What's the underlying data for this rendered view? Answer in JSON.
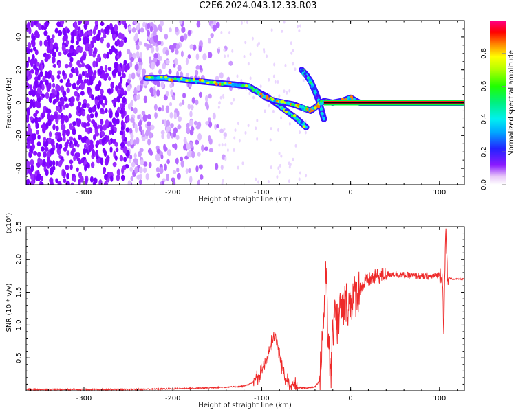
{
  "page": {
    "title": "C2E6.2024.043.12.33.R03"
  },
  "chart_data": [
    {
      "type": "heatmap",
      "title": "C2E6.2024.043.12.33.R03",
      "xlabel": "Height of straight line (km)",
      "ylabel": "Frequency (Hz)",
      "xlim": [
        -365,
        128
      ],
      "ylim": [
        -50,
        50
      ],
      "xticks": [
        -300,
        -200,
        -100,
        0,
        100
      ],
      "yticks": [
        -40,
        -20,
        0,
        20,
        40
      ],
      "xtick_labels": [
        "-300",
        "-200",
        "-100",
        "0",
        "100"
      ],
      "ytick_labels": [
        "-40",
        "-20",
        "0",
        "20",
        "40"
      ],
      "colorbar": {
        "label": "Normalized spectral amplitude",
        "range": [
          0,
          1
        ],
        "ticks": [
          0.0,
          0.2,
          0.4,
          0.6,
          0.8
        ],
        "tick_labels": [
          "0.0",
          "0.2",
          "0.4",
          "0.6",
          "0.8"
        ],
        "colormap": "rainbow (white-violet-blue-cyan-green-yellow-red-magenta)"
      },
      "ridge": {
        "x": [
          -230,
          -210,
          -190,
          -170,
          -150,
          -130,
          -115,
          -105,
          -95,
          -85,
          -75,
          -65,
          -55,
          -50,
          -45,
          -40,
          -35,
          -30,
          -20,
          -10,
          0,
          10,
          50,
          100,
          128
        ],
        "y": [
          15,
          15,
          14,
          13,
          12,
          11,
          10,
          7,
          3,
          1,
          0,
          -1,
          -3,
          -4,
          -5,
          -3,
          -1,
          1,
          0,
          1,
          3,
          0,
          0,
          0,
          0
        ]
      },
      "branch": {
        "x": [
          -110,
          -95,
          -80,
          -70,
          -60,
          -50
        ],
        "y": [
          8,
          4,
          -2,
          -6,
          -10,
          -15
        ]
      },
      "upper_branch": {
        "x": [
          -55,
          -50,
          -45,
          -40,
          -35,
          -30
        ],
        "y": [
          20,
          17,
          13,
          7,
          0,
          -10
        ]
      }
    },
    {
      "type": "line",
      "xlabel": "Height of straight line (km)",
      "ylabel": "SNR (10 * v/v)",
      "y_multiplier_label": "(x10⁴)",
      "xlim": [
        -365,
        128
      ],
      "ylim": [
        0,
        2.5
      ],
      "xticks": [
        -300,
        -200,
        -100,
        0,
        100
      ],
      "yticks": [
        0.5,
        1.0,
        1.5,
        2.0,
        2.5
      ],
      "xtick_labels": [
        "-300",
        "-200",
        "-100",
        "0",
        "100"
      ],
      "ytick_labels": [
        "0.5",
        "1.0",
        "1.5",
        "2.0",
        "2.5"
      ],
      "color": "#ee2a2a",
      "series": [
        {
          "x": [
            -365,
            -300,
            -250,
            -200,
            -170,
            -150,
            -130,
            -120,
            -110,
            -105,
            -100,
            -95,
            -90,
            -85,
            -80,
            -75,
            -70,
            -65,
            -60,
            -50,
            -40,
            -35,
            -30,
            -27,
            -25,
            -22,
            -20,
            -18,
            -15,
            -12,
            -10,
            -8,
            -5,
            -2,
            0,
            5,
            10,
            15,
            20,
            25,
            30,
            40,
            50,
            60,
            70,
            80,
            90,
            95,
            100,
            103,
            105,
            107,
            109,
            112,
            115,
            120,
            128
          ],
          "y": [
            0.02,
            0.02,
            0.02,
            0.03,
            0.04,
            0.05,
            0.06,
            0.07,
            0.12,
            0.2,
            0.3,
            0.45,
            0.65,
            0.85,
            0.55,
            0.25,
            0.12,
            0.08,
            0.05,
            0.04,
            0.06,
            0.15,
            1.2,
            1.9,
            0.6,
            0.3,
            0.8,
            1.4,
            1.0,
            1.25,
            1.2,
            1.25,
            1.35,
            1.3,
            1.38,
            1.45,
            1.55,
            1.62,
            1.68,
            1.72,
            1.74,
            1.77,
            1.78,
            1.76,
            1.75,
            1.74,
            1.74,
            1.75,
            1.77,
            1.8,
            0.9,
            2.5,
            1.72,
            1.71,
            1.7,
            1.7,
            1.7
          ]
        }
      ]
    }
  ]
}
